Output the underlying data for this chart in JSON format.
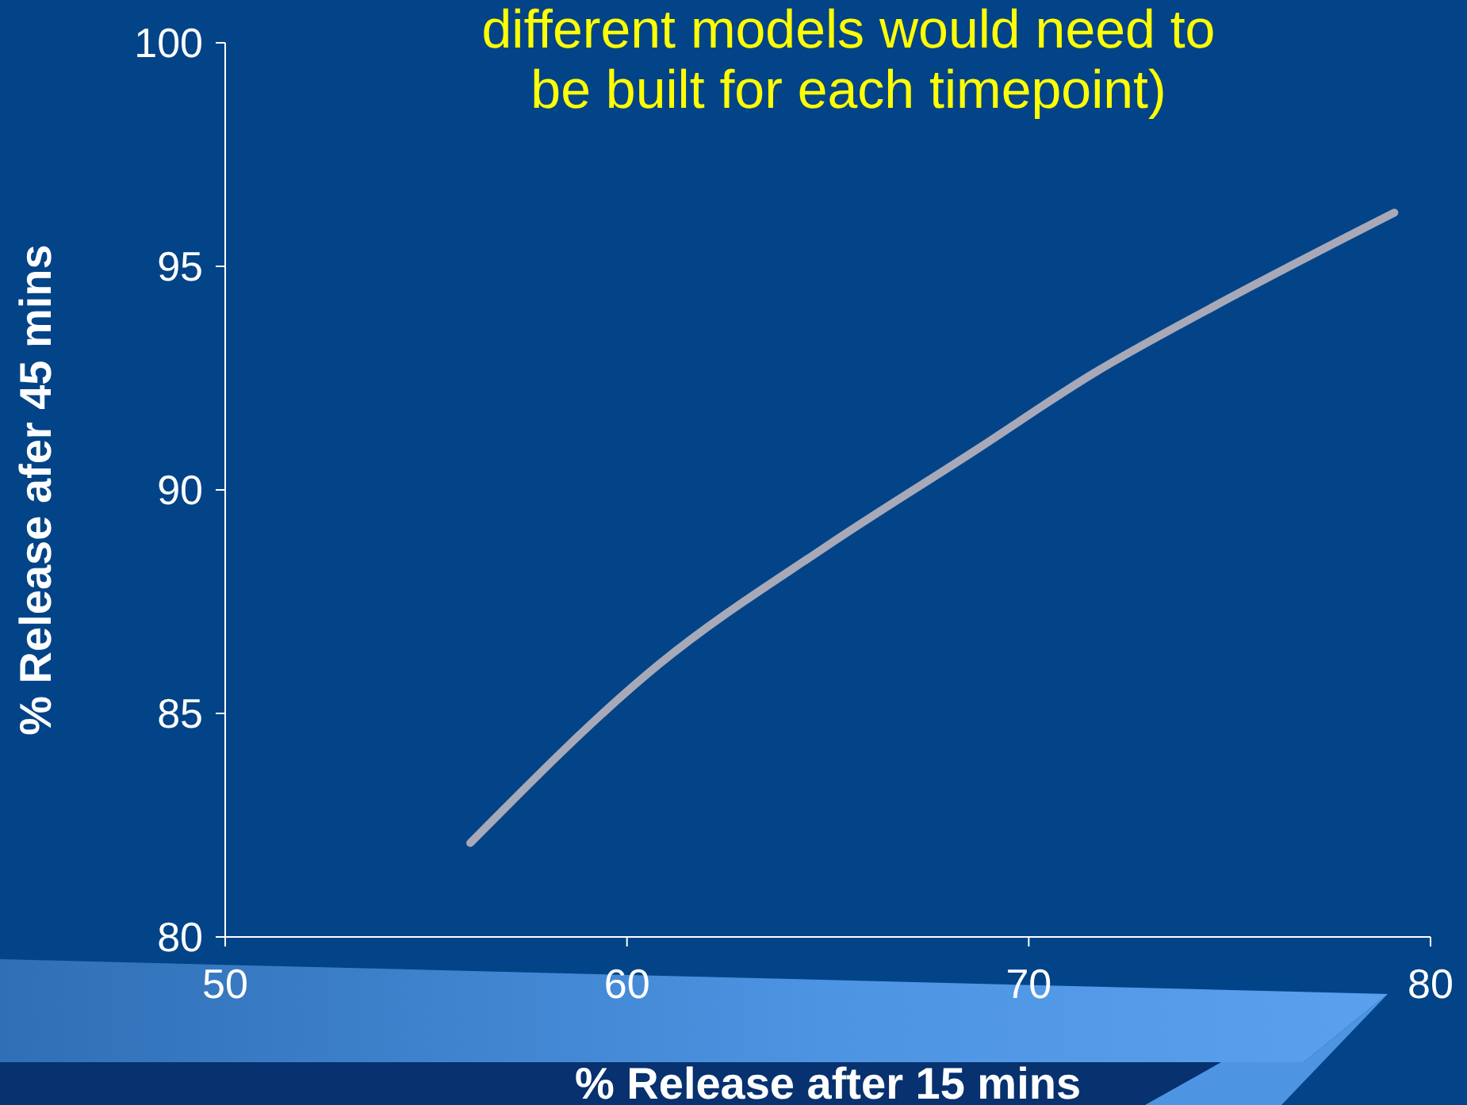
{
  "chart_data": {
    "type": "line",
    "title": "different models would need to be built for each timepoint)",
    "xlabel": "% Release after 15 mins",
    "ylabel": "% Release afer 45 mins",
    "x": [
      56.1,
      60.8,
      64.9,
      68.7,
      71.6,
      74.6,
      79.1
    ],
    "values": [
      82.1,
      86.1,
      88.7,
      90.9,
      92.6,
      94.1,
      96.2
    ],
    "color": "#a8a9b8",
    "xlim": [
      50,
      80
    ],
    "xticks": [
      50,
      60,
      70,
      80
    ],
    "ylim": [
      80,
      100
    ],
    "yticks": [
      80,
      85,
      90,
      95,
      100
    ],
    "marker": "none",
    "line_style": "solid"
  }
}
